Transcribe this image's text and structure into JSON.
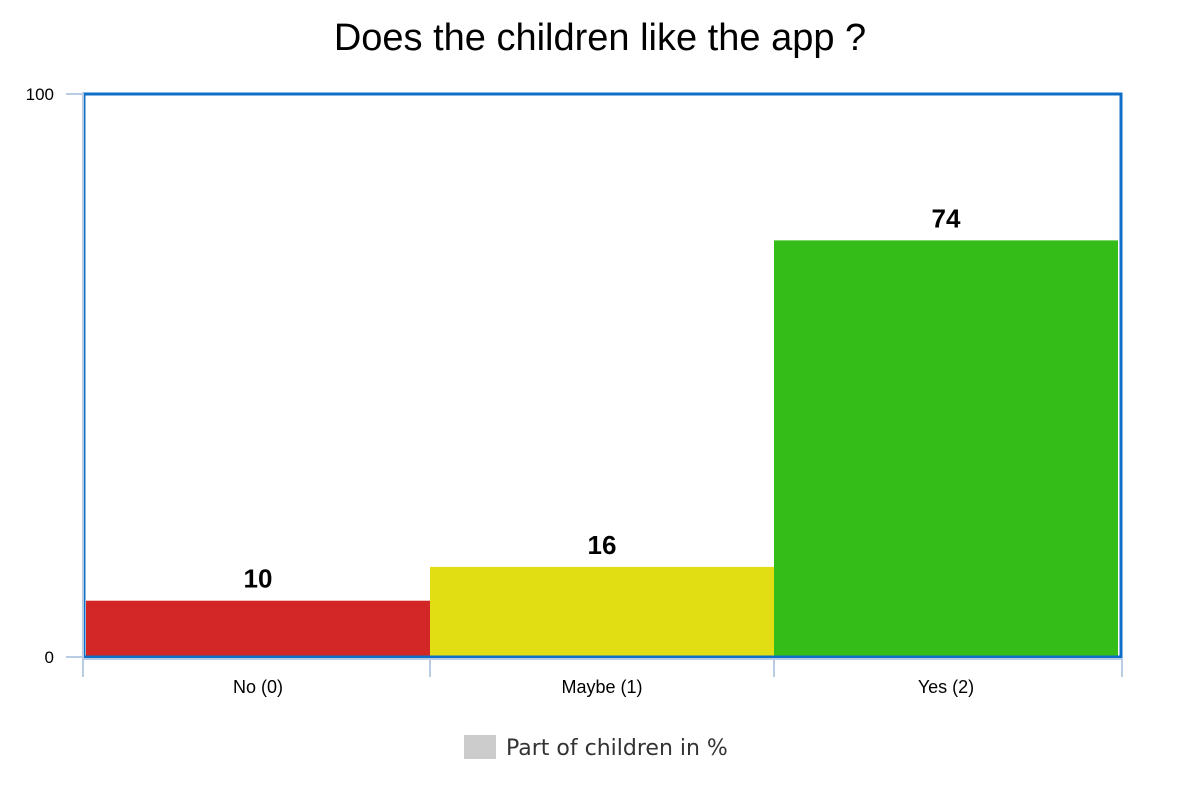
{
  "chart_data": {
    "type": "bar",
    "title": "Does the children like the app ?",
    "categories": [
      "No (0)",
      "Maybe (1)",
      "Yes (2)"
    ],
    "series": [
      {
        "name": "Part of children in %",
        "values": [
          10,
          16,
          74
        ],
        "colors": [
          "#d32626",
          "#e2de14",
          "#34bd19"
        ]
      }
    ],
    "ylim": [
      0,
      100
    ],
    "yticks": [
      "0",
      "100"
    ],
    "grid": false,
    "legend_position": "bottom",
    "legend_color": "#cccccc",
    "frame_color": "#0f6fc6",
    "axis_color": "#b8cce4"
  }
}
